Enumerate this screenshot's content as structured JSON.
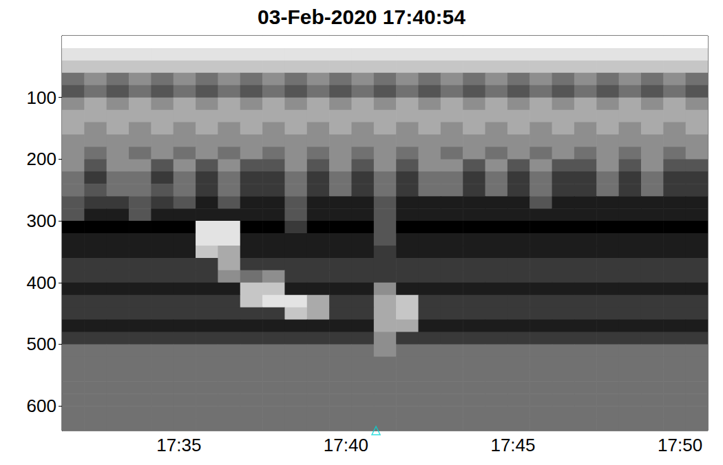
{
  "chart_data": {
    "type": "heatmap",
    "title": "03-Feb-2020 17:40:54",
    "xlim": [
      "17:31:30",
      "17:50:50"
    ],
    "xticks": [
      "17:35",
      "17:40",
      "17:45",
      "17:50"
    ],
    "ylim": [
      0,
      640
    ],
    "yticks": [
      100,
      200,
      300,
      400,
      500,
      600
    ],
    "grid": false,
    "zlim": [
      0,
      9
    ],
    "x_edges": [
      "17:31:30",
      "17:32:10",
      "17:32:50",
      "17:33:30",
      "17:34:10",
      "17:34:50",
      "17:35:30",
      "17:36:10",
      "17:36:50",
      "17:37:30",
      "17:38:10",
      "17:38:50",
      "17:39:30",
      "17:40:10",
      "17:40:50",
      "17:41:30",
      "17:42:10",
      "17:42:50",
      "17:43:30",
      "17:44:10",
      "17:44:50",
      "17:45:30",
      "17:46:10",
      "17:46:50",
      "17:47:30",
      "17:48:10",
      "17:48:50",
      "17:49:30",
      "17:50:10",
      "17:50:50"
    ],
    "y_edges": [
      0,
      20,
      40,
      60,
      80,
      100,
      120,
      140,
      160,
      180,
      200,
      220,
      240,
      260,
      280,
      300,
      320,
      340,
      360,
      380,
      400,
      420,
      440,
      460,
      480,
      500,
      520,
      540,
      560,
      580,
      600,
      620,
      640
    ],
    "cells": [
      [
        9,
        9,
        9,
        9,
        9,
        9,
        9,
        9,
        9,
        9,
        9,
        9,
        9,
        9,
        9,
        9,
        9,
        9,
        9,
        9,
        9,
        9,
        9,
        9,
        9,
        9,
        9,
        9,
        9
      ],
      [
        8,
        8,
        8,
        8,
        8,
        8,
        8,
        8,
        8,
        8,
        8,
        8,
        8,
        8,
        8,
        8,
        8,
        8,
        8,
        8,
        8,
        8,
        8,
        8,
        8,
        8,
        8,
        8,
        8
      ],
      [
        7,
        7,
        7,
        7,
        7,
        7,
        7,
        7,
        7,
        7,
        7,
        7,
        7,
        7,
        7,
        7,
        7,
        7,
        7,
        7,
        7,
        7,
        7,
        7,
        7,
        7,
        7,
        7,
        7
      ],
      [
        4,
        5,
        4,
        5,
        4,
        5,
        4,
        5,
        4,
        5,
        4,
        5,
        4,
        5,
        4,
        5,
        4,
        5,
        4,
        5,
        4,
        5,
        4,
        5,
        4,
        5,
        4,
        5,
        4
      ],
      [
        3,
        4,
        3,
        4,
        3,
        4,
        3,
        4,
        3,
        4,
        3,
        4,
        3,
        4,
        3,
        4,
        3,
        4,
        3,
        4,
        3,
        4,
        3,
        4,
        3,
        4,
        3,
        4,
        3
      ],
      [
        5,
        6,
        5,
        6,
        5,
        6,
        5,
        6,
        5,
        6,
        5,
        6,
        5,
        6,
        5,
        6,
        5,
        6,
        5,
        6,
        5,
        6,
        5,
        6,
        5,
        6,
        5,
        6,
        5
      ],
      [
        6,
        6,
        6,
        6,
        6,
        6,
        6,
        6,
        6,
        6,
        6,
        6,
        6,
        6,
        6,
        6,
        6,
        6,
        6,
        6,
        6,
        6,
        6,
        6,
        6,
        6,
        6,
        6,
        6
      ],
      [
        6,
        5,
        6,
        5,
        6,
        5,
        6,
        5,
        6,
        5,
        6,
        5,
        6,
        5,
        6,
        5,
        6,
        5,
        6,
        5,
        6,
        5,
        6,
        5,
        6,
        5,
        6,
        5,
        6
      ],
      [
        5,
        5,
        5,
        5,
        5,
        5,
        5,
        5,
        5,
        5,
        5,
        5,
        5,
        5,
        5,
        5,
        5,
        5,
        5,
        5,
        5,
        5,
        5,
        5,
        5,
        5,
        5,
        5,
        5
      ],
      [
        5,
        4,
        5,
        4,
        5,
        4,
        5,
        4,
        5,
        4,
        5,
        4,
        5,
        4,
        5,
        4,
        5,
        4,
        5,
        4,
        5,
        4,
        5,
        4,
        5,
        4,
        5,
        4,
        5
      ],
      [
        5,
        3,
        5,
        5,
        3,
        5,
        3,
        5,
        3,
        3,
        5,
        3,
        5,
        3,
        5,
        3,
        5,
        5,
        3,
        5,
        3,
        5,
        3,
        3,
        5,
        3,
        5,
        3,
        3
      ],
      [
        4,
        2,
        4,
        4,
        2,
        4,
        2,
        4,
        2,
        2,
        4,
        2,
        4,
        2,
        4,
        2,
        4,
        4,
        2,
        4,
        2,
        4,
        2,
        2,
        4,
        2,
        4,
        2,
        2
      ],
      [
        4,
        3,
        4,
        4,
        3,
        4,
        2,
        4,
        2,
        2,
        4,
        2,
        4,
        2,
        4,
        2,
        4,
        4,
        2,
        4,
        2,
        4,
        2,
        2,
        4,
        2,
        4,
        2,
        2
      ],
      [
        3,
        2,
        2,
        3,
        2,
        3,
        1,
        3,
        1,
        1,
        3,
        1,
        1,
        1,
        3,
        1,
        1,
        1,
        1,
        1,
        1,
        3,
        1,
        1,
        1,
        1,
        1,
        1,
        1
      ],
      [
        3,
        1,
        1,
        3,
        1,
        1,
        1,
        1,
        1,
        1,
        3,
        1,
        1,
        1,
        3,
        1,
        1,
        1,
        1,
        1,
        1,
        1,
        1,
        1,
        1,
        1,
        1,
        1,
        1
      ],
      [
        0,
        0,
        0,
        0,
        0,
        0,
        8,
        8,
        0,
        0,
        2,
        0,
        0,
        0,
        3,
        0,
        0,
        0,
        0,
        0,
        0,
        0,
        0,
        0,
        0,
        0,
        0,
        0,
        0
      ],
      [
        1,
        1,
        1,
        1,
        1,
        1,
        8,
        8,
        1,
        1,
        1,
        1,
        1,
        1,
        3,
        1,
        1,
        1,
        1,
        1,
        1,
        1,
        1,
        1,
        1,
        1,
        1,
        1,
        1
      ],
      [
        1,
        1,
        1,
        1,
        1,
        1,
        7,
        6,
        1,
        1,
        1,
        1,
        1,
        1,
        2,
        1,
        1,
        1,
        1,
        1,
        1,
        1,
        1,
        1,
        1,
        1,
        1,
        1,
        1
      ],
      [
        2,
        2,
        2,
        2,
        2,
        2,
        2,
        6,
        2,
        2,
        2,
        2,
        2,
        2,
        2,
        2,
        2,
        2,
        2,
        2,
        2,
        2,
        2,
        2,
        2,
        2,
        2,
        2,
        2
      ],
      [
        2,
        2,
        2,
        2,
        2,
        2,
        2,
        5,
        4,
        5,
        2,
        2,
        2,
        2,
        2,
        2,
        2,
        2,
        2,
        2,
        2,
        2,
        2,
        2,
        2,
        2,
        2,
        2,
        2
      ],
      [
        1,
        1,
        1,
        1,
        1,
        1,
        1,
        1,
        7,
        7,
        1,
        1,
        1,
        1,
        5,
        1,
        1,
        1,
        1,
        1,
        1,
        1,
        1,
        1,
        1,
        1,
        1,
        1,
        1
      ],
      [
        2,
        2,
        2,
        2,
        2,
        2,
        2,
        2,
        7,
        8,
        8,
        6,
        2,
        2,
        6,
        7,
        2,
        2,
        2,
        2,
        2,
        2,
        2,
        2,
        2,
        2,
        2,
        2,
        2
      ],
      [
        2,
        2,
        2,
        2,
        2,
        2,
        2,
        2,
        2,
        2,
        7,
        6,
        2,
        2,
        6,
        7,
        2,
        2,
        2,
        2,
        2,
        2,
        2,
        2,
        2,
        2,
        2,
        2,
        2
      ],
      [
        1,
        1,
        1,
        1,
        1,
        1,
        1,
        1,
        1,
        1,
        1,
        1,
        1,
        1,
        6,
        6,
        1,
        1,
        1,
        1,
        1,
        1,
        1,
        1,
        1,
        1,
        1,
        1,
        1
      ],
      [
        2,
        2,
        2,
        2,
        2,
        2,
        2,
        2,
        2,
        2,
        2,
        2,
        2,
        2,
        5,
        2,
        2,
        2,
        2,
        2,
        2,
        2,
        2,
        2,
        2,
        2,
        2,
        2,
        2
      ],
      [
        4,
        4,
        4,
        4,
        4,
        4,
        4,
        4,
        4,
        4,
        4,
        4,
        4,
        4,
        5,
        4,
        4,
        4,
        4,
        4,
        4,
        4,
        4,
        4,
        4,
        4,
        4,
        4,
        4
      ],
      [
        4,
        4,
        4,
        4,
        4,
        4,
        4,
        4,
        4,
        4,
        4,
        4,
        4,
        4,
        4,
        4,
        4,
        4,
        4,
        4,
        4,
        4,
        4,
        4,
        4,
        4,
        4,
        4,
        4
      ],
      [
        4,
        4,
        4,
        4,
        4,
        4,
        4,
        4,
        4,
        4,
        4,
        4,
        4,
        4,
        4,
        4,
        4,
        4,
        4,
        4,
        4,
        4,
        4,
        4,
        4,
        4,
        4,
        4,
        4
      ],
      [
        4,
        4,
        4,
        4,
        4,
        4,
        4,
        4,
        4,
        4,
        4,
        4,
        4,
        4,
        4,
        4,
        4,
        4,
        4,
        4,
        4,
        4,
        4,
        4,
        4,
        4,
        4,
        4,
        4
      ],
      [
        4,
        4,
        4,
        4,
        4,
        4,
        4,
        4,
        4,
        4,
        4,
        4,
        4,
        4,
        4,
        4,
        4,
        4,
        4,
        4,
        4,
        4,
        4,
        4,
        4,
        4,
        4,
        4,
        4
      ],
      [
        4,
        4,
        4,
        4,
        4,
        4,
        4,
        4,
        4,
        4,
        4,
        4,
        4,
        4,
        4,
        4,
        4,
        4,
        4,
        4,
        4,
        4,
        4,
        4,
        4,
        4,
        4,
        4,
        4
      ],
      [
        4,
        4,
        4,
        4,
        4,
        4,
        4,
        4,
        4,
        4,
        4,
        4,
        4,
        4,
        4,
        4,
        4,
        4,
        4,
        4,
        4,
        4,
        4,
        4,
        4,
        4,
        4,
        4,
        4
      ]
    ],
    "series": [
      {
        "type": "scatter",
        "marker": "triangle",
        "color": "#00d8d8",
        "x": [
          "17:40:54"
        ],
        "values": [
          640
        ]
      }
    ]
  }
}
